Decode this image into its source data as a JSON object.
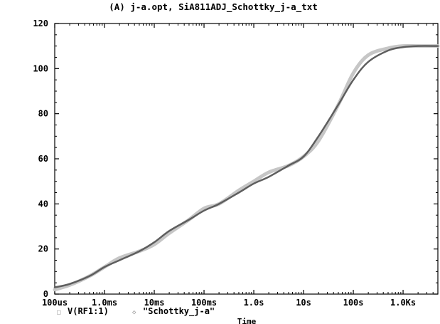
{
  "chart_data": {
    "type": "line",
    "title": "(A) j-a.opt, SiA811ADJ_Schottky_j-a_txt",
    "xlabel": "Time",
    "ylabel": "",
    "x_scale": "log",
    "x_unit": "s",
    "xlim": [
      0.0001,
      5000
    ],
    "ylim": [
      0,
      120
    ],
    "x_ticks": [
      {
        "value": 0.0001,
        "label": "100us"
      },
      {
        "value": 0.001,
        "label": "1.0ms"
      },
      {
        "value": 0.01,
        "label": "10ms"
      },
      {
        "value": 0.1,
        "label": "100ms"
      },
      {
        "value": 1,
        "label": "1.0s"
      },
      {
        "value": 10,
        "label": "10s"
      },
      {
        "value": 100,
        "label": "100s"
      },
      {
        "value": 1000,
        "label": "1.0Ks"
      }
    ],
    "y_ticks": [
      {
        "value": 0,
        "label": "0"
      },
      {
        "value": 20,
        "label": "20"
      },
      {
        "value": 40,
        "label": "40"
      },
      {
        "value": 60,
        "label": "60"
      },
      {
        "value": 80,
        "label": "80"
      },
      {
        "value": 100,
        "label": "100"
      },
      {
        "value": 120,
        "label": "120"
      }
    ],
    "grid": false,
    "legend_position": "bottom-left",
    "series": [
      {
        "name": "V(RF1:1)",
        "marker": "□",
        "color": "#5e5e5e",
        "x": [
          0.0001,
          0.0002,
          0.0005,
          0.001,
          0.002,
          0.005,
          0.01,
          0.02,
          0.05,
          0.1,
          0.2,
          0.5,
          1,
          2,
          5,
          10,
          20,
          50,
          100,
          200,
          500,
          1000,
          2000,
          5000
        ],
        "y": [
          3,
          4.5,
          8,
          12,
          15,
          19,
          23,
          28,
          33,
          37,
          40,
          45,
          49,
          52,
          57,
          61,
          70,
          84,
          95,
          103,
          108,
          109.5,
          110,
          110
        ]
      },
      {
        "name": "\"Schottky_j-a\"",
        "marker": "◇",
        "color": "#c6c6c6",
        "x": [
          0.0001,
          0.0002,
          0.0005,
          0.001,
          0.002,
          0.005,
          0.01,
          0.02,
          0.05,
          0.1,
          0.2,
          0.5,
          1,
          2,
          5,
          10,
          20,
          50,
          100,
          200,
          500,
          1000,
          2000,
          5000
        ],
        "y": [
          2,
          4,
          8,
          12,
          16,
          19,
          22,
          27,
          33,
          38,
          40,
          46,
          50,
          54,
          57,
          61,
          68,
          84,
          98,
          106,
          109,
          110,
          110,
          110
        ]
      }
    ]
  }
}
